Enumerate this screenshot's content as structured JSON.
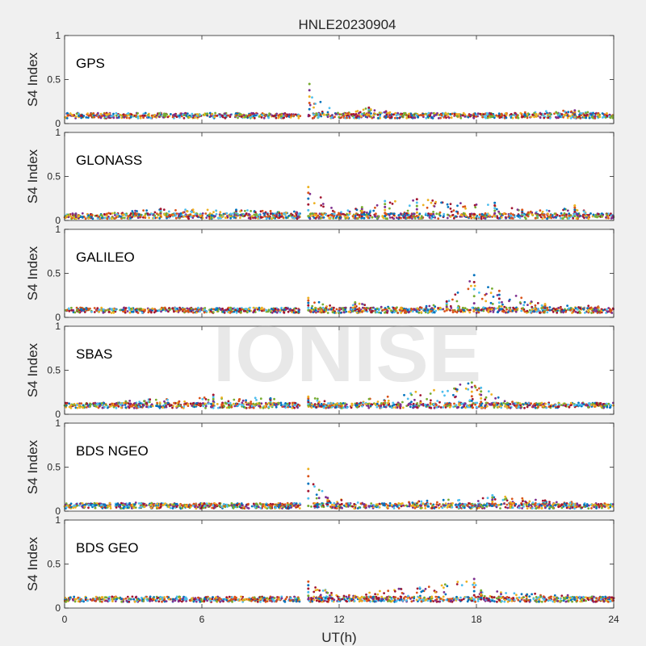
{
  "figure": {
    "title": "HNLE20230904",
    "watermark": "IONISE",
    "xlabel": "UT(h)",
    "ylabel": "S4 Index",
    "background": "#f0f0f0",
    "axes_background": "#ffffff",
    "colors": [
      "#0072BD",
      "#D95319",
      "#EDB120",
      "#7E2F8E",
      "#77AC30",
      "#4DBEEE",
      "#A2142F"
    ]
  },
  "chart_data": [
    {
      "type": "scatter",
      "panel": "GPS",
      "xlim": [
        0,
        24
      ],
      "ylim": [
        0,
        1
      ],
      "xticks": [
        "0",
        "6",
        "12",
        "18",
        "24"
      ],
      "yticks": [
        "0",
        "0.5",
        "1"
      ],
      "baseline": 0.09,
      "gap": [
        10.3,
        10.65
      ],
      "series": [
        {
          "values": [
            [
              0,
              0.08
            ],
            [
              2,
              0.09
            ],
            [
              4,
              0.08
            ],
            [
              6,
              0.09
            ],
            [
              8,
              0.1
            ],
            [
              10.3,
              0.08
            ],
            [
              10.7,
              0.45
            ],
            [
              12,
              0.1
            ],
            [
              13.3,
              0.18
            ],
            [
              15,
              0.1
            ],
            [
              18,
              0.11
            ],
            [
              20,
              0.13
            ],
            [
              22.3,
              0.15
            ],
            [
              24,
              0.1
            ]
          ]
        }
      ]
    },
    {
      "type": "scatter",
      "panel": "GLONASS",
      "xlim": [
        0,
        24
      ],
      "ylim": [
        0,
        1
      ],
      "xticks": [
        "0",
        "6",
        "12",
        "18",
        "24"
      ],
      "yticks": [
        "0",
        "0.5",
        "1"
      ],
      "baseline": 0.05,
      "gap": [
        10.3,
        10.65
      ],
      "series": [
        {
          "values": [
            [
              0,
              0.05
            ],
            [
              4.2,
              0.13
            ],
            [
              7.5,
              0.12
            ],
            [
              10.3,
              0.1
            ],
            [
              10.65,
              0.38
            ],
            [
              12,
              0.1
            ],
            [
              13,
              0.15
            ],
            [
              14,
              0.22
            ],
            [
              15.4,
              0.24
            ],
            [
              18.8,
              0.2
            ],
            [
              20,
              0.12
            ],
            [
              22.3,
              0.17
            ],
            [
              24,
              0.05
            ]
          ]
        }
      ]
    },
    {
      "type": "scatter",
      "panel": "GALILEO",
      "xlim": [
        0,
        24
      ],
      "ylim": [
        0,
        1
      ],
      "xticks": [
        "0",
        "6",
        "12",
        "18",
        "24"
      ],
      "yticks": [
        "0",
        "0.5",
        "1"
      ],
      "baseline": 0.08,
      "gap": [
        10.3,
        10.65
      ],
      "series": [
        {
          "values": [
            [
              0,
              0.08
            ],
            [
              4,
              0.1
            ],
            [
              8,
              0.1
            ],
            [
              10.3,
              0.1
            ],
            [
              10.65,
              0.22
            ],
            [
              12,
              0.1
            ],
            [
              12.7,
              0.17
            ],
            [
              15,
              0.1
            ],
            [
              16.7,
              0.18
            ],
            [
              17.9,
              0.48
            ],
            [
              19,
              0.3
            ],
            [
              21,
              0.15
            ],
            [
              24,
              0.12
            ]
          ]
        }
      ]
    },
    {
      "type": "scatter",
      "panel": "SBAS",
      "xlim": [
        0,
        24
      ],
      "ylim": [
        0,
        1
      ],
      "xticks": [
        "0",
        "6",
        "12",
        "18",
        "24"
      ],
      "yticks": [
        "0",
        "0.5",
        "1"
      ],
      "baseline": 0.1,
      "gap": [
        10.3,
        10.65
      ],
      "series": [
        {
          "values": [
            [
              0,
              0.1
            ],
            [
              6.5,
              0.22
            ],
            [
              9,
              0.18
            ],
            [
              10.3,
              0.12
            ],
            [
              10.65,
              0.2
            ],
            [
              12,
              0.12
            ],
            [
              17.8,
              0.36
            ],
            [
              18.2,
              0.3
            ],
            [
              20,
              0.12
            ],
            [
              24,
              0.1
            ]
          ]
        }
      ]
    },
    {
      "type": "scatter",
      "panel": "BDS NGEO",
      "xlim": [
        0,
        24
      ],
      "ylim": [
        0,
        1
      ],
      "xticks": [
        "0",
        "6",
        "12",
        "18",
        "24"
      ],
      "yticks": [
        "0",
        "0.5",
        "1"
      ],
      "baseline": 0.06,
      "gap": [
        10.3,
        10.65
      ],
      "series": [
        {
          "values": [
            [
              0,
              0.06
            ],
            [
              3,
              0.1
            ],
            [
              6,
              0.07
            ],
            [
              10.3,
              0.08
            ],
            [
              10.65,
              0.48
            ],
            [
              11.5,
              0.15
            ],
            [
              14,
              0.08
            ],
            [
              18.7,
              0.18
            ],
            [
              21,
              0.12
            ],
            [
              24,
              0.08
            ]
          ]
        }
      ]
    },
    {
      "type": "scatter",
      "panel": "BDS GEO",
      "xlim": [
        0,
        24
      ],
      "ylim": [
        0,
        1
      ],
      "xticks": [
        "0",
        "6",
        "12",
        "18",
        "24"
      ],
      "yticks": [
        "0",
        "0.5",
        "1"
      ],
      "baseline": 0.1,
      "gap": [
        10.3,
        10.65
      ],
      "series": [
        {
          "values": [
            [
              0,
              0.1
            ],
            [
              5,
              0.1
            ],
            [
              10.3,
              0.1
            ],
            [
              10.65,
              0.3
            ],
            [
              12,
              0.14
            ],
            [
              17.9,
              0.33
            ],
            [
              18.2,
              0.2
            ],
            [
              24,
              0.12
            ]
          ]
        }
      ]
    }
  ]
}
